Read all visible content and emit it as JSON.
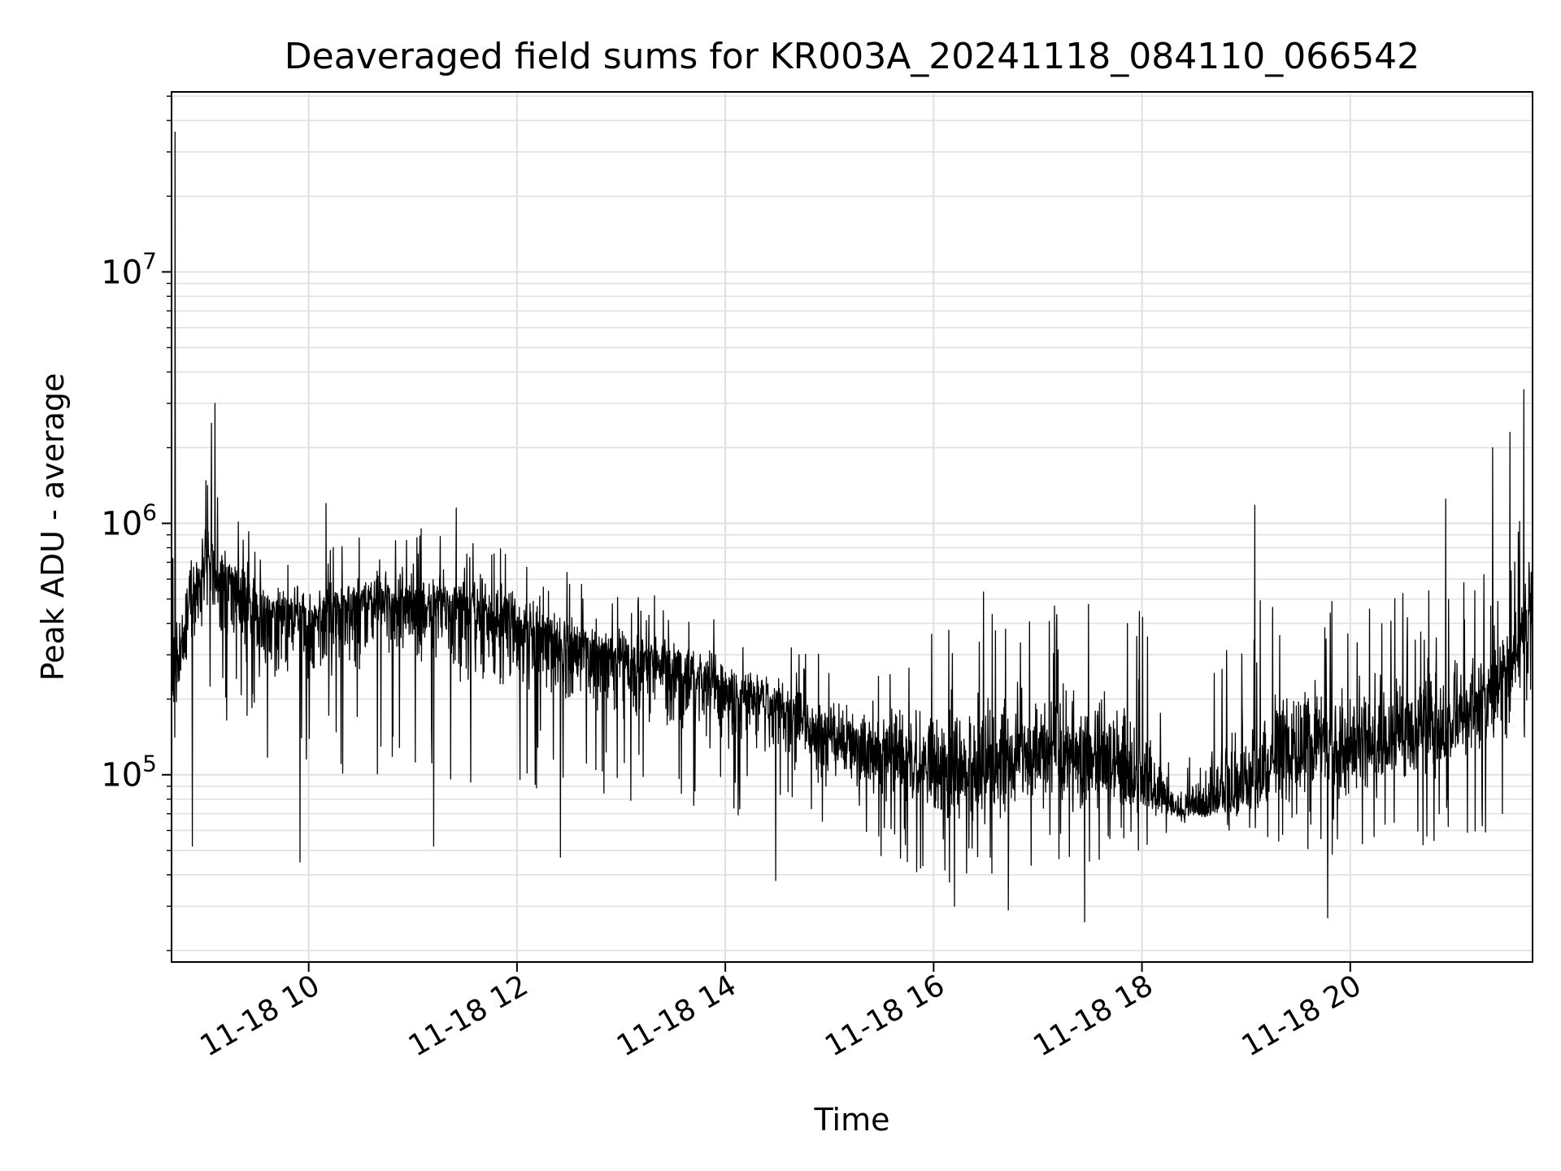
{
  "chart_data": {
    "type": "line",
    "title": "Deaveraged field sums for KR003A_20241118_084110_066542",
    "xlabel": "Time",
    "ylabel": "Peak ADU - average",
    "x_axis": {
      "type": "datetime",
      "start": "2024-11-18 08:41",
      "end": "2024-11-18 21:45"
    },
    "y_axis": {
      "scale": "log",
      "ylim": [
        18000,
        52000000
      ]
    },
    "x_ticks": [
      {
        "time": "2024-11-18 10:00",
        "label": "11-18 10"
      },
      {
        "time": "2024-11-18 12:00",
        "label": "11-18 12"
      },
      {
        "time": "2024-11-18 14:00",
        "label": "11-18 14"
      },
      {
        "time": "2024-11-18 16:00",
        "label": "11-18 16"
      },
      {
        "time": "2024-11-18 18:00",
        "label": "11-18 18"
      },
      {
        "time": "2024-11-18 20:00",
        "label": "11-18 20"
      }
    ],
    "y_ticks": [
      {
        "value": 100000,
        "base": "10",
        "exp": "5"
      },
      {
        "value": 1000000,
        "base": "10",
        "exp": "6"
      },
      {
        "value": 10000000,
        "base": "10",
        "exp": "7"
      }
    ],
    "grid": true,
    "grid_minor_y": true,
    "line_color": "#000000",
    "grid_color": "#e0e0e0",
    "series_envelope": {
      "x": [
        "2024-11-18 08:41",
        "2024-11-18 09:00",
        "2024-11-18 09:30",
        "2024-11-18 10:00",
        "2024-11-18 10:30",
        "2024-11-18 11:00",
        "2024-11-18 11:30",
        "2024-11-18 12:00",
        "2024-11-18 12:30",
        "2024-11-18 13:00",
        "2024-11-18 13:30",
        "2024-11-18 14:00",
        "2024-11-18 14:30",
        "2024-11-18 15:00",
        "2024-11-18 15:30",
        "2024-11-18 16:00",
        "2024-11-18 16:30",
        "2024-11-18 17:00",
        "2024-11-18 17:30",
        "2024-11-18 18:00",
        "2024-11-18 18:20",
        "2024-11-18 18:40",
        "2024-11-18 19:00",
        "2024-11-18 19:30",
        "2024-11-18 20:00",
        "2024-11-18 20:30",
        "2024-11-18 21:00",
        "2024-11-18 21:30",
        "2024-11-18 21:45"
      ],
      "center": [
        250000,
        700000,
        450000,
        420000,
        500000,
        480000,
        450000,
        400000,
        330000,
        290000,
        270000,
        220000,
        190000,
        140000,
        120000,
        100000,
        105000,
        120000,
        110000,
        90000,
        72000,
        72000,
        90000,
        130000,
        130000,
        140000,
        160000,
        250000,
        500000
      ],
      "low": [
        90000,
        200000,
        120000,
        90000,
        100000,
        100000,
        90000,
        90000,
        80000,
        70000,
        70000,
        65000,
        60000,
        50000,
        45000,
        38000,
        35000,
        40000,
        40000,
        50000,
        62000,
        62000,
        50000,
        50000,
        45000,
        50000,
        55000,
        60000,
        150000
      ],
      "high": [
        800000,
        1600000,
        900000,
        800000,
        900000,
        950000,
        1000000,
        800000,
        650000,
        550000,
        500000,
        420000,
        350000,
        300000,
        350000,
        500000,
        550000,
        550000,
        500000,
        450000,
        100000,
        250000,
        500000,
        550000,
        500000,
        550000,
        600000,
        700000,
        1500000
      ]
    },
    "spikes": [
      {
        "x": "2024-11-18 08:43",
        "y": 36000000
      },
      {
        "x": "2024-11-18 09:06",
        "y": 3000000
      },
      {
        "x": "2024-11-18 09:04",
        "y": 2500000
      },
      {
        "x": "2024-11-18 10:10",
        "y": 1200000
      },
      {
        "x": "2024-11-18 11:25",
        "y": 1150000
      },
      {
        "x": "2024-11-18 19:05",
        "y": 1180000
      },
      {
        "x": "2024-11-18 20:55",
        "y": 1250000
      },
      {
        "x": "2024-11-18 21:22",
        "y": 2000000
      },
      {
        "x": "2024-11-18 21:32",
        "y": 2300000
      },
      {
        "x": "2024-11-18 21:40",
        "y": 3400000
      }
    ],
    "dips": [
      {
        "x": "2024-11-18 08:53",
        "y": 52000
      },
      {
        "x": "2024-11-18 09:55",
        "y": 45000
      },
      {
        "x": "2024-11-18 11:12",
        "y": 52000
      },
      {
        "x": "2024-11-18 12:25",
        "y": 47000
      },
      {
        "x": "2024-11-18 14:29",
        "y": 38000
      },
      {
        "x": "2024-11-18 16:12",
        "y": 30000
      },
      {
        "x": "2024-11-18 16:43",
        "y": 29000
      },
      {
        "x": "2024-11-18 17:27",
        "y": 26000
      },
      {
        "x": "2024-11-18 19:47",
        "y": 27000
      }
    ]
  }
}
